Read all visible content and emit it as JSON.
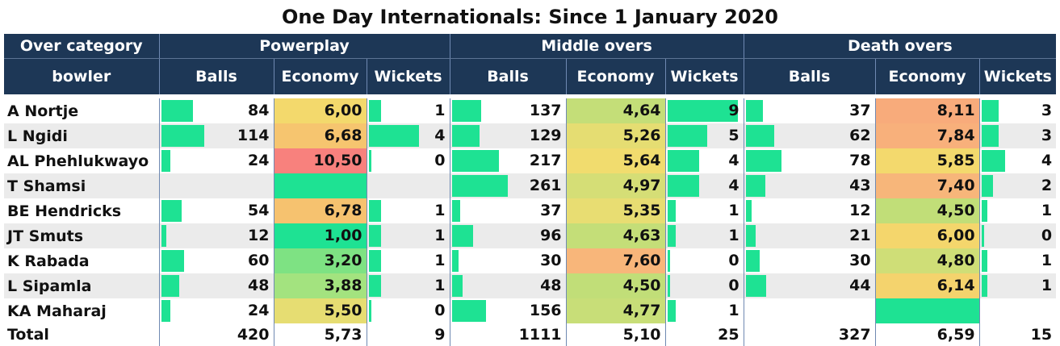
{
  "title": "One Day Internationals: Since 1 January 2020",
  "header": {
    "over_category": "Over category",
    "bowler": "bowler",
    "groups": [
      "Powerplay",
      "Middle overs",
      "Death overs"
    ],
    "metrics": [
      "Balls",
      "Economy",
      "Wickets"
    ]
  },
  "colors": {
    "header_bg": "#1d3756",
    "bar": "#1ee293",
    "economy_low": "#1ee293",
    "economy_mid": "#f2dc6b",
    "economy_high": "#f8a77a",
    "economy_max": "#f8817d"
  },
  "chart_data": {
    "type": "table",
    "title": "One Day Internationals: Since 1 January 2020",
    "columns": [
      "Over category bowler",
      "Powerplay Balls",
      "Powerplay Economy",
      "Powerplay Wickets",
      "Middle overs Balls",
      "Middle overs Economy",
      "Middle overs Wickets",
      "Death overs Balls",
      "Death overs Economy",
      "Death overs Wickets"
    ],
    "rows": [
      {
        "bowler": "A Nortje",
        "pp_balls": "84",
        "pp_eco": "6,00",
        "pp_wkts": "1",
        "mo_balls": "137",
        "mo_eco": "4,64",
        "mo_wkts": "9",
        "do_balls": "37",
        "do_eco": "8,11",
        "do_wkts": "3"
      },
      {
        "bowler": "L Ngidi",
        "pp_balls": "114",
        "pp_eco": "6,68",
        "pp_wkts": "4",
        "mo_balls": "129",
        "mo_eco": "5,26",
        "mo_wkts": "5",
        "do_balls": "62",
        "do_eco": "7,84",
        "do_wkts": "3"
      },
      {
        "bowler": "AL Phehlukwayo",
        "pp_balls": "24",
        "pp_eco": "10,50",
        "pp_wkts": "0",
        "mo_balls": "217",
        "mo_eco": "5,64",
        "mo_wkts": "4",
        "do_balls": "78",
        "do_eco": "5,85",
        "do_wkts": "4"
      },
      {
        "bowler": "T Shamsi",
        "pp_balls": "",
        "pp_eco": "",
        "pp_wkts": "",
        "mo_balls": "261",
        "mo_eco": "4,97",
        "mo_wkts": "4",
        "do_balls": "43",
        "do_eco": "7,40",
        "do_wkts": "2"
      },
      {
        "bowler": "BE Hendricks",
        "pp_balls": "54",
        "pp_eco": "6,78",
        "pp_wkts": "1",
        "mo_balls": "37",
        "mo_eco": "5,35",
        "mo_wkts": "1",
        "do_balls": "12",
        "do_eco": "4,50",
        "do_wkts": "1"
      },
      {
        "bowler": "JT Smuts",
        "pp_balls": "12",
        "pp_eco": "1,00",
        "pp_wkts": "1",
        "mo_balls": "96",
        "mo_eco": "4,63",
        "mo_wkts": "1",
        "do_balls": "21",
        "do_eco": "6,00",
        "do_wkts": "0"
      },
      {
        "bowler": "K Rabada",
        "pp_balls": "60",
        "pp_eco": "3,20",
        "pp_wkts": "1",
        "mo_balls": "30",
        "mo_eco": "7,60",
        "mo_wkts": "0",
        "do_balls": "30",
        "do_eco": "4,80",
        "do_wkts": "1"
      },
      {
        "bowler": "L Sipamla",
        "pp_balls": "48",
        "pp_eco": "3,88",
        "pp_wkts": "1",
        "mo_balls": "48",
        "mo_eco": "4,50",
        "mo_wkts": "0",
        "do_balls": "44",
        "do_eco": "6,14",
        "do_wkts": "1"
      },
      {
        "bowler": "KA Maharaj",
        "pp_balls": "24",
        "pp_eco": "5,50",
        "pp_wkts": "0",
        "mo_balls": "156",
        "mo_eco": "4,77",
        "mo_wkts": "1",
        "do_balls": "",
        "do_eco": "",
        "do_wkts": ""
      }
    ],
    "total": {
      "bowler": "Total",
      "pp_balls": "420",
      "pp_eco": "5,73",
      "pp_wkts": "9",
      "mo_balls": "1111",
      "mo_eco": "5,10",
      "mo_wkts": "25",
      "do_balls": "327",
      "do_eco": "6,59",
      "do_wkts": "15"
    },
    "cell_colors": [
      {
        "pp_eco": "#f3d96c",
        "mo_eco": "#c4de78",
        "do_eco": "#f8ab7b"
      },
      {
        "pp_eco": "#f6c56f",
        "mo_eco": "#e5dd72",
        "do_eco": "#f8b07b"
      },
      {
        "pp_eco": "#f8817d",
        "mo_eco": "#f1dc6e",
        "do_eco": "#f3d96d"
      },
      {
        "pp_eco": "#1ee293",
        "mo_eco": "#d5de76",
        "do_eco": "#f7b67a"
      },
      {
        "pp_eco": "#f6c26f",
        "mo_eco": "#e8dd72",
        "do_eco": "#c1de78"
      },
      {
        "pp_eco": "#1ee293",
        "mo_eco": "#c4de78",
        "do_eco": "#f4d66c"
      },
      {
        "pp_eco": "#7ee283",
        "mo_eco": "#f8b67a",
        "do_eco": "#cfde77"
      },
      {
        "pp_eco": "#a3e37f",
        "mo_eco": "#c1de78",
        "do_eco": "#f4d36d"
      },
      {
        "pp_eco": "#e6dd72",
        "mo_eco": "#c8de78",
        "do_eco": "#1ee293"
      }
    ]
  }
}
